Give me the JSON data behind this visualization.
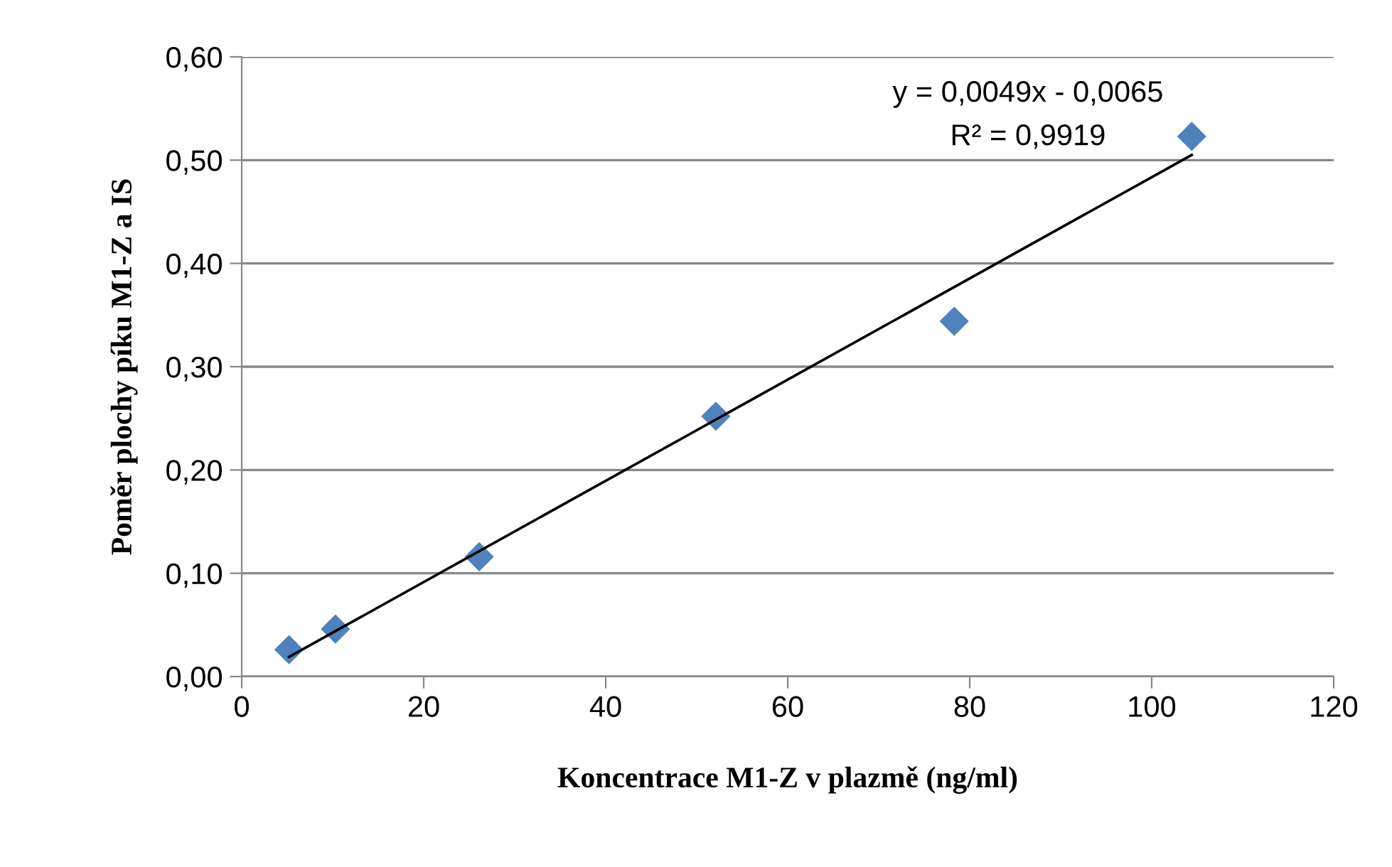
{
  "chart_data": {
    "type": "scatter",
    "xlabel": "Koncentrace M1-Z v plazmě (ng/ml)",
    "ylabel": "Poměr plochy píku M1-Z a IS",
    "annotations": [
      "y = 0,0049x - 0,0065",
      "R² = 0,9919"
    ],
    "series": [
      {
        "color": "#4f81bd",
        "marker": "diamond",
        "x": [
          5.2,
          10.3,
          26.1,
          52.1,
          78.3,
          104.4
        ],
        "values": [
          0.026,
          0.046,
          0.116,
          0.252,
          0.344,
          0.523
        ]
      },
      {
        "type": "line",
        "color": "#000000",
        "line_style": "solid",
        "marker": "none",
        "x": [
          5.2,
          104.4
        ],
        "values": [
          0.019,
          0.505
        ]
      }
    ],
    "xlim": [
      0,
      120
    ],
    "xticks": [
      0,
      20,
      40,
      60,
      80,
      100,
      120
    ],
    "ylim": [
      0,
      0.6
    ],
    "yticks": [
      {
        "value": 0,
        "label": "0,00"
      },
      {
        "value": 0.1,
        "label": "0,10"
      },
      {
        "value": 0.2,
        "label": "0,20"
      },
      {
        "value": 0.3,
        "label": "0,30"
      },
      {
        "value": 0.4,
        "label": "0,40"
      },
      {
        "value": 0.5,
        "label": "0,50"
      },
      {
        "value": 0.6,
        "label": "0,60"
      }
    ],
    "grid": "y",
    "legend": false
  }
}
